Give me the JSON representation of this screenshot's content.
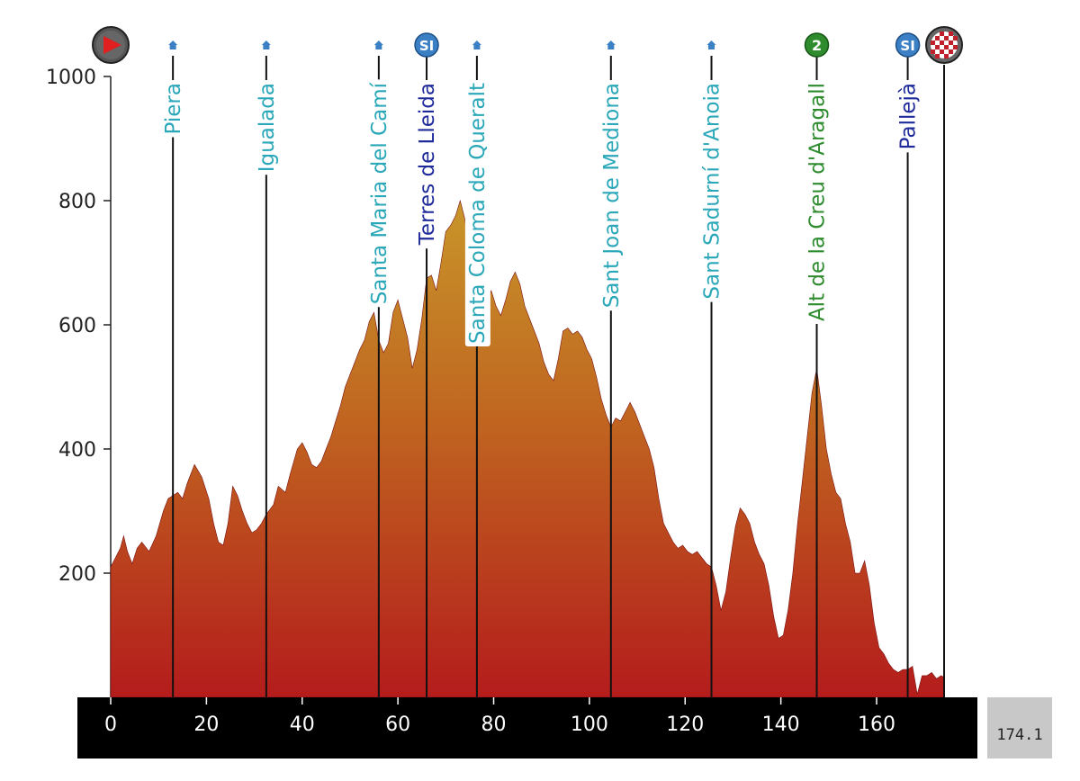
{
  "chart_data": {
    "type": "area",
    "title": "",
    "xlabel": "",
    "ylabel": "",
    "xlim": [
      0,
      174.1
    ],
    "ylim": [
      0,
      1000
    ],
    "x_ticks": [
      0,
      20,
      40,
      60,
      80,
      100,
      120,
      140,
      160
    ],
    "y_ticks": [
      200,
      400,
      600,
      800,
      1000
    ],
    "total_distance_label": "174.1",
    "grid": false,
    "colors": {
      "area_top": "#c8962a",
      "area_bottom": "#b41c1c",
      "axis_band": "#000000",
      "total_box": "#c8c8c8"
    },
    "waypoints": [
      {
        "name": "Piera",
        "km": 13,
        "altitude": 325,
        "type": "town",
        "icon": "house-icon",
        "color": "#2aa7b8"
      },
      {
        "name": "Igualada",
        "km": 32.5,
        "altitude": 295,
        "type": "town",
        "icon": "house-icon",
        "color": "#2aa7b8"
      },
      {
        "name": "Santa Maria del Camí",
        "km": 56,
        "altitude": 575,
        "type": "town",
        "icon": "house-icon",
        "color": "#2aa7b8"
      },
      {
        "name": "Terres de Lleida",
        "km": 66,
        "altitude": 675,
        "type": "intermediate-sprint",
        "icon": "si-icon",
        "icon_text": "SI",
        "color": "#1f2b9a"
      },
      {
        "name": "Santa Coloma de Queralt",
        "km": 76.5,
        "altitude": 625,
        "type": "town",
        "icon": "house-icon",
        "color": "#2aa7b8"
      },
      {
        "name": "Sant Joan de Mediona",
        "km": 104.5,
        "altitude": 435,
        "type": "town",
        "icon": "house-icon",
        "color": "#2aa7b8"
      },
      {
        "name": "Sant Sadurní d'Anoia",
        "km": 125.5,
        "altitude": 210,
        "type": "town",
        "icon": "house-icon",
        "color": "#2aa7b8"
      },
      {
        "name": "Alt de la Creu d'Aragall",
        "km": 147.5,
        "altitude": 525,
        "type": "climb",
        "icon": "climb-category-icon",
        "icon_text": "2",
        "color": "#2e8b2e"
      },
      {
        "name": "Pallejà",
        "km": 166.5,
        "altitude": 45,
        "type": "intermediate-sprint",
        "icon": "si-icon",
        "icon_text": "SI",
        "color": "#1f2b9a"
      }
    ],
    "start": {
      "km": 0,
      "icon": "start-play-icon"
    },
    "finish": {
      "km": 174.1,
      "icon": "finish-flag-icon"
    },
    "profile": [
      [
        0,
        210
      ],
      [
        1,
        225
      ],
      [
        2,
        240
      ],
      [
        2.7,
        260
      ],
      [
        3.5,
        235
      ],
      [
        4.5,
        215
      ],
      [
        5.5,
        240
      ],
      [
        6.5,
        250
      ],
      [
        8,
        235
      ],
      [
        9.5,
        260
      ],
      [
        11,
        300
      ],
      [
        12,
        320
      ],
      [
        13,
        325
      ],
      [
        14,
        330
      ],
      [
        15,
        320
      ],
      [
        16,
        345
      ],
      [
        17.5,
        375
      ],
      [
        19,
        355
      ],
      [
        20.5,
        320
      ],
      [
        21.5,
        280
      ],
      [
        22.5,
        250
      ],
      [
        23.5,
        245
      ],
      [
        24.5,
        280
      ],
      [
        25.5,
        340
      ],
      [
        26.5,
        325
      ],
      [
        27.5,
        300
      ],
      [
        28.5,
        280
      ],
      [
        29.5,
        265
      ],
      [
        30.5,
        270
      ],
      [
        31.5,
        280
      ],
      [
        32.5,
        295
      ],
      [
        34,
        310
      ],
      [
        35,
        340
      ],
      [
        36.5,
        330
      ],
      [
        37.5,
        360
      ],
      [
        39,
        400
      ],
      [
        40,
        410
      ],
      [
        41,
        395
      ],
      [
        42,
        375
      ],
      [
        43,
        370
      ],
      [
        44,
        380
      ],
      [
        45,
        400
      ],
      [
        46,
        420
      ],
      [
        47,
        445
      ],
      [
        48,
        470
      ],
      [
        49,
        500
      ],
      [
        50,
        520
      ],
      [
        51,
        540
      ],
      [
        52,
        560
      ],
      [
        53,
        575
      ],
      [
        54,
        605
      ],
      [
        55,
        620
      ],
      [
        56,
        575
      ],
      [
        57,
        555
      ],
      [
        58,
        570
      ],
      [
        59,
        620
      ],
      [
        60,
        640
      ],
      [
        61,
        610
      ],
      [
        62,
        580
      ],
      [
        63,
        530
      ],
      [
        64,
        560
      ],
      [
        65,
        610
      ],
      [
        66,
        675
      ],
      [
        67,
        680
      ],
      [
        68,
        655
      ],
      [
        69,
        700
      ],
      [
        70,
        750
      ],
      [
        71,
        760
      ],
      [
        72,
        775
      ],
      [
        73,
        800
      ],
      [
        74,
        770
      ],
      [
        75,
        700
      ],
      [
        76.5,
        625
      ],
      [
        77.5,
        640
      ],
      [
        78.5,
        635
      ],
      [
        79.5,
        655
      ],
      [
        80.5,
        630
      ],
      [
        81.5,
        615
      ],
      [
        82.5,
        640
      ],
      [
        83.5,
        670
      ],
      [
        84.5,
        685
      ],
      [
        85.5,
        665
      ],
      [
        86.5,
        630
      ],
      [
        87.5,
        610
      ],
      [
        88.5,
        590
      ],
      [
        89.5,
        570
      ],
      [
        90.5,
        540
      ],
      [
        91.5,
        520
      ],
      [
        92.5,
        510
      ],
      [
        93.5,
        545
      ],
      [
        94.5,
        590
      ],
      [
        95.5,
        595
      ],
      [
        96.5,
        585
      ],
      [
        97.5,
        590
      ],
      [
        98.5,
        580
      ],
      [
        99.5,
        560
      ],
      [
        100.5,
        545
      ],
      [
        101.5,
        515
      ],
      [
        102.5,
        480
      ],
      [
        103.5,
        455
      ],
      [
        104.5,
        435
      ],
      [
        105.5,
        450
      ],
      [
        106.5,
        445
      ],
      [
        107.5,
        460
      ],
      [
        108.5,
        475
      ],
      [
        109.5,
        460
      ],
      [
        110.5,
        440
      ],
      [
        111.5,
        420
      ],
      [
        112.5,
        400
      ],
      [
        113.5,
        370
      ],
      [
        114.5,
        320
      ],
      [
        115.5,
        280
      ],
      [
        116.5,
        265
      ],
      [
        117.5,
        250
      ],
      [
        118.5,
        240
      ],
      [
        119.5,
        245
      ],
      [
        120.5,
        235
      ],
      [
        121.5,
        230
      ],
      [
        122.5,
        235
      ],
      [
        123.5,
        225
      ],
      [
        124.5,
        215
      ],
      [
        125.5,
        210
      ],
      [
        126.5,
        180
      ],
      [
        127.5,
        140
      ],
      [
        128.5,
        170
      ],
      [
        129.5,
        225
      ],
      [
        130.5,
        275
      ],
      [
        131.5,
        305
      ],
      [
        132.5,
        295
      ],
      [
        133.5,
        280
      ],
      [
        134.5,
        250
      ],
      [
        135.5,
        230
      ],
      [
        136.5,
        215
      ],
      [
        137.5,
        180
      ],
      [
        138.5,
        130
      ],
      [
        139.5,
        95
      ],
      [
        140.5,
        100
      ],
      [
        141.5,
        140
      ],
      [
        142.5,
        200
      ],
      [
        143.5,
        280
      ],
      [
        144.5,
        350
      ],
      [
        145.5,
        420
      ],
      [
        146.5,
        490
      ],
      [
        147.5,
        530
      ],
      [
        148.5,
        470
      ],
      [
        149.5,
        400
      ],
      [
        150.5,
        360
      ],
      [
        151.5,
        330
      ],
      [
        152.5,
        320
      ],
      [
        153.5,
        280
      ],
      [
        154.5,
        250
      ],
      [
        155.5,
        200
      ],
      [
        156.5,
        200
      ],
      [
        157.5,
        220
      ],
      [
        158.5,
        180
      ],
      [
        159.5,
        120
      ],
      [
        160.5,
        80
      ],
      [
        161.5,
        70
      ],
      [
        162.5,
        55
      ],
      [
        163.5,
        45
      ],
      [
        164.5,
        40
      ],
      [
        165.5,
        45
      ],
      [
        166.5,
        45
      ],
      [
        167.5,
        50
      ],
      [
        168.5,
        5
      ],
      [
        169.5,
        35
      ],
      [
        170.5,
        35
      ],
      [
        171.5,
        40
      ],
      [
        172.5,
        30
      ],
      [
        173.5,
        35
      ],
      [
        174.1,
        32
      ]
    ]
  }
}
